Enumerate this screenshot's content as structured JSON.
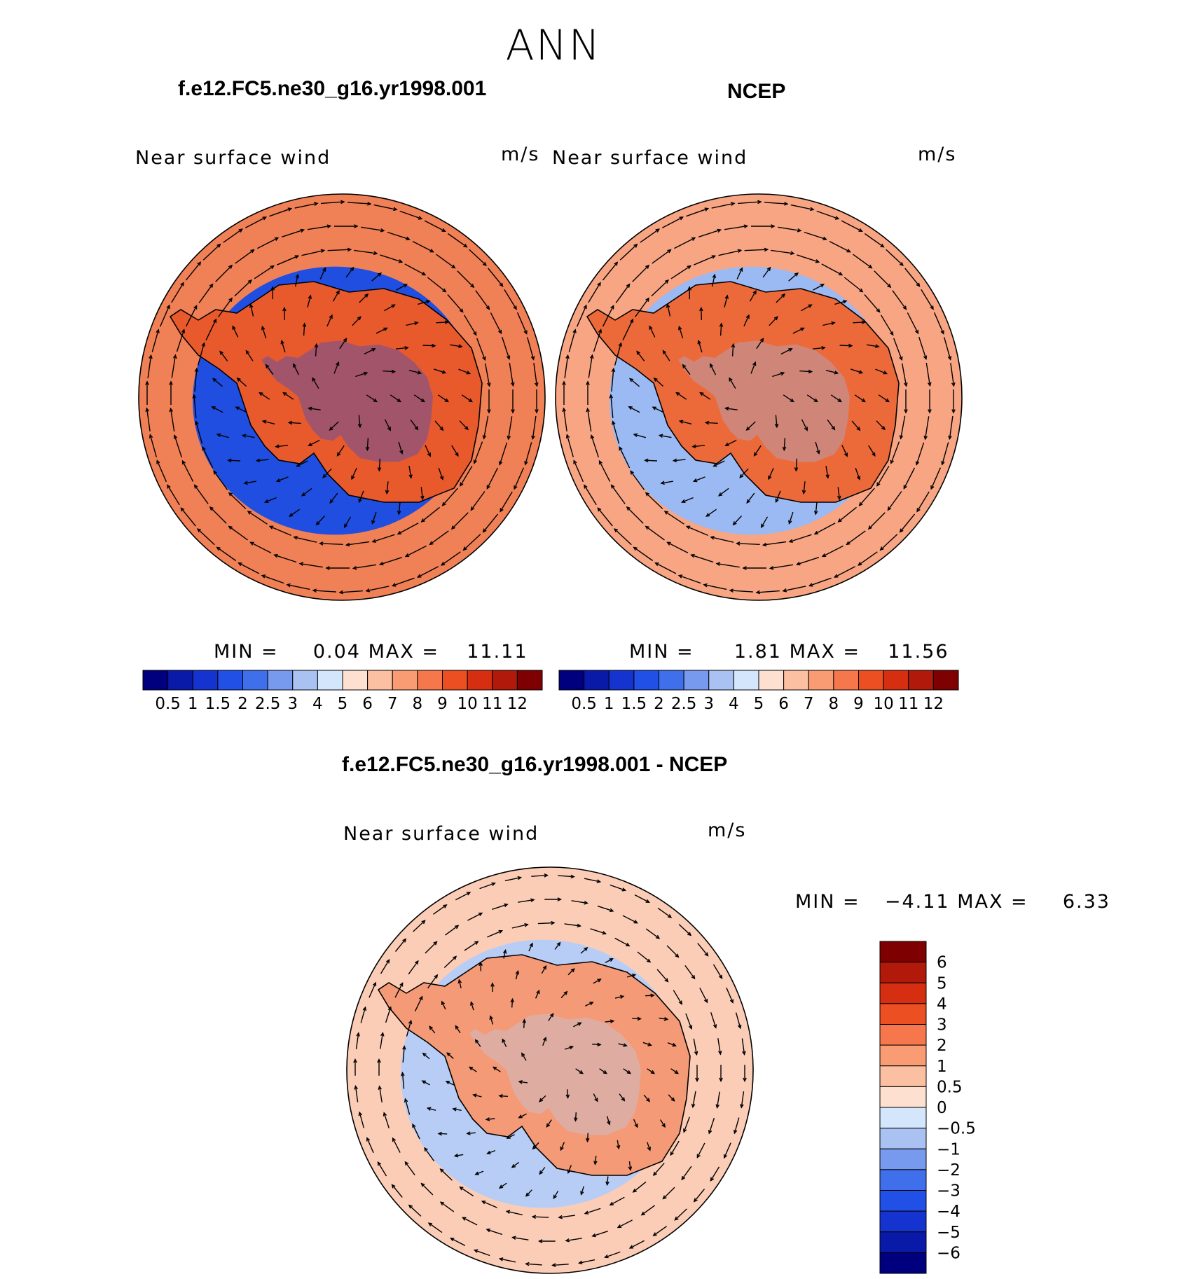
{
  "figure": {
    "title": "ANN"
  },
  "panels": [
    {
      "title": "f.e12.FC5.ne30_g16.yr1998.001",
      "variable": "Near surface wind",
      "units": "m/s",
      "min_label": "MIN =",
      "min_value": "0.04",
      "max_label": "MAX =",
      "max_value": "11.11"
    },
    {
      "title": "NCEP",
      "variable": "Near surface wind",
      "units": "m/s",
      "min_label": "MIN =",
      "min_value": "1.81",
      "max_label": "MAX =",
      "max_value": "11.56"
    },
    {
      "title": "f.e12.FC5.ne30_g16.yr1998.001 - NCEP",
      "variable": "Near surface wind",
      "units": "m/s",
      "min_label": "MIN =",
      "min_value": "−4.11",
      "max_label": "MAX =",
      "max_value": "6.33"
    }
  ],
  "colorbars": {
    "speed": {
      "labels": [
        "0.5",
        "1",
        "1.5",
        "2",
        "2.5",
        "3",
        "4",
        "5",
        "6",
        "7",
        "8",
        "9",
        "10",
        "11",
        "12"
      ],
      "colors": [
        "#00007f",
        "#0a1aa8",
        "#1533cf",
        "#2050e6",
        "#3f6fea",
        "#7799ee",
        "#a9c2f2",
        "#d4e6fb",
        "#fde0cf",
        "#fbbfa2",
        "#f99c73",
        "#f6774b",
        "#ec4f22",
        "#d62e10",
        "#b11a0a",
        "#7f0000"
      ]
    },
    "difference": {
      "labels": [
        "6",
        "5",
        "4",
        "3",
        "2",
        "1",
        "0.5",
        "0",
        "−0.5",
        "−1",
        "−2",
        "−3",
        "−4",
        "−5",
        "−6"
      ],
      "colors": [
        "#7f0000",
        "#b11a0a",
        "#d62e10",
        "#ec4f22",
        "#f6774b",
        "#f99c73",
        "#fbbfa2",
        "#fde0cf",
        "#d4e6fb",
        "#a9c2f2",
        "#7799ee",
        "#3f6fea",
        "#2050e6",
        "#1533cf",
        "#0a1aa8",
        "#00007f"
      ]
    }
  },
  "map_style": {
    "model_ring_color": "#f08055",
    "model_inner_color": "#1f4ee0",
    "model_land_color": "#e85a2c",
    "ncep_ring_color": "#f7a583",
    "ncep_inner_color": "#9bb9f2",
    "ncep_land_color": "#ec6a3a",
    "diff_ring_color": "#fbcdb6",
    "diff_inner_color": "#b7cdf5",
    "diff_land_color": "#f49a76",
    "coastline_color": "#000000",
    "vector_color": "#000000"
  }
}
